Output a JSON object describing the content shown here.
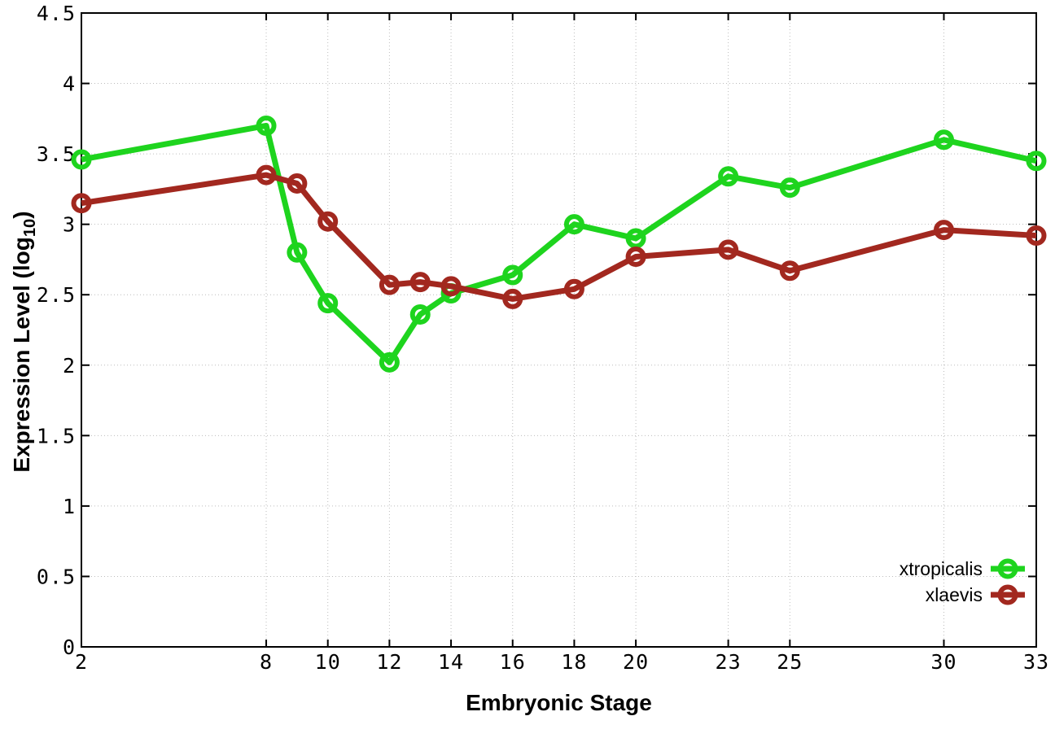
{
  "figure": {
    "background": "#ffffff",
    "border_color": "#000000",
    "grid_color": "#bcbcbc"
  },
  "chart_data": {
    "type": "line",
    "title": "",
    "xlabel": "Embryonic Stage",
    "ylabel": "Expression Level (log10)",
    "ylabel_parts": {
      "prefix": "Expression Level (log",
      "sub": "10",
      "suffix": ")"
    },
    "xlim": [
      2,
      33
    ],
    "ylim": [
      0,
      4.5
    ],
    "grid": true,
    "legend_position": "bottom-right",
    "x_tick_values": [
      2,
      8,
      10,
      12,
      14,
      16,
      18,
      20,
      23,
      25,
      30,
      33
    ],
    "x_tick_labels": [
      "2",
      "8",
      "10",
      "12",
      "14",
      "16",
      "18",
      "20",
      "23",
      "25",
      "30",
      "33"
    ],
    "y_tick_values": [
      0,
      0.5,
      1,
      1.5,
      2,
      2.5,
      3,
      3.5,
      4,
      4.5
    ],
    "y_tick_labels": [
      "0",
      "0.5",
      "1",
      "1.5",
      "2",
      "2.5",
      "3",
      "3.5",
      "4",
      "4.5"
    ],
    "x": [
      2,
      8,
      9,
      10,
      12,
      13,
      14,
      16,
      18,
      20,
      23,
      25,
      30,
      33
    ],
    "series": [
      {
        "name": "xtropicalis",
        "color": "#1ed41e",
        "marker": "open-circle",
        "values": [
          3.46,
          3.7,
          2.8,
          2.44,
          2.02,
          2.36,
          2.51,
          2.64,
          3.0,
          2.9,
          3.34,
          3.26,
          3.6,
          3.45
        ]
      },
      {
        "name": "xlaevis",
        "color": "#a2281f",
        "marker": "open-circle",
        "values": [
          3.15,
          3.35,
          3.29,
          3.02,
          2.57,
          2.59,
          2.56,
          2.47,
          2.54,
          2.77,
          2.82,
          2.67,
          2.96,
          2.92
        ]
      }
    ]
  }
}
